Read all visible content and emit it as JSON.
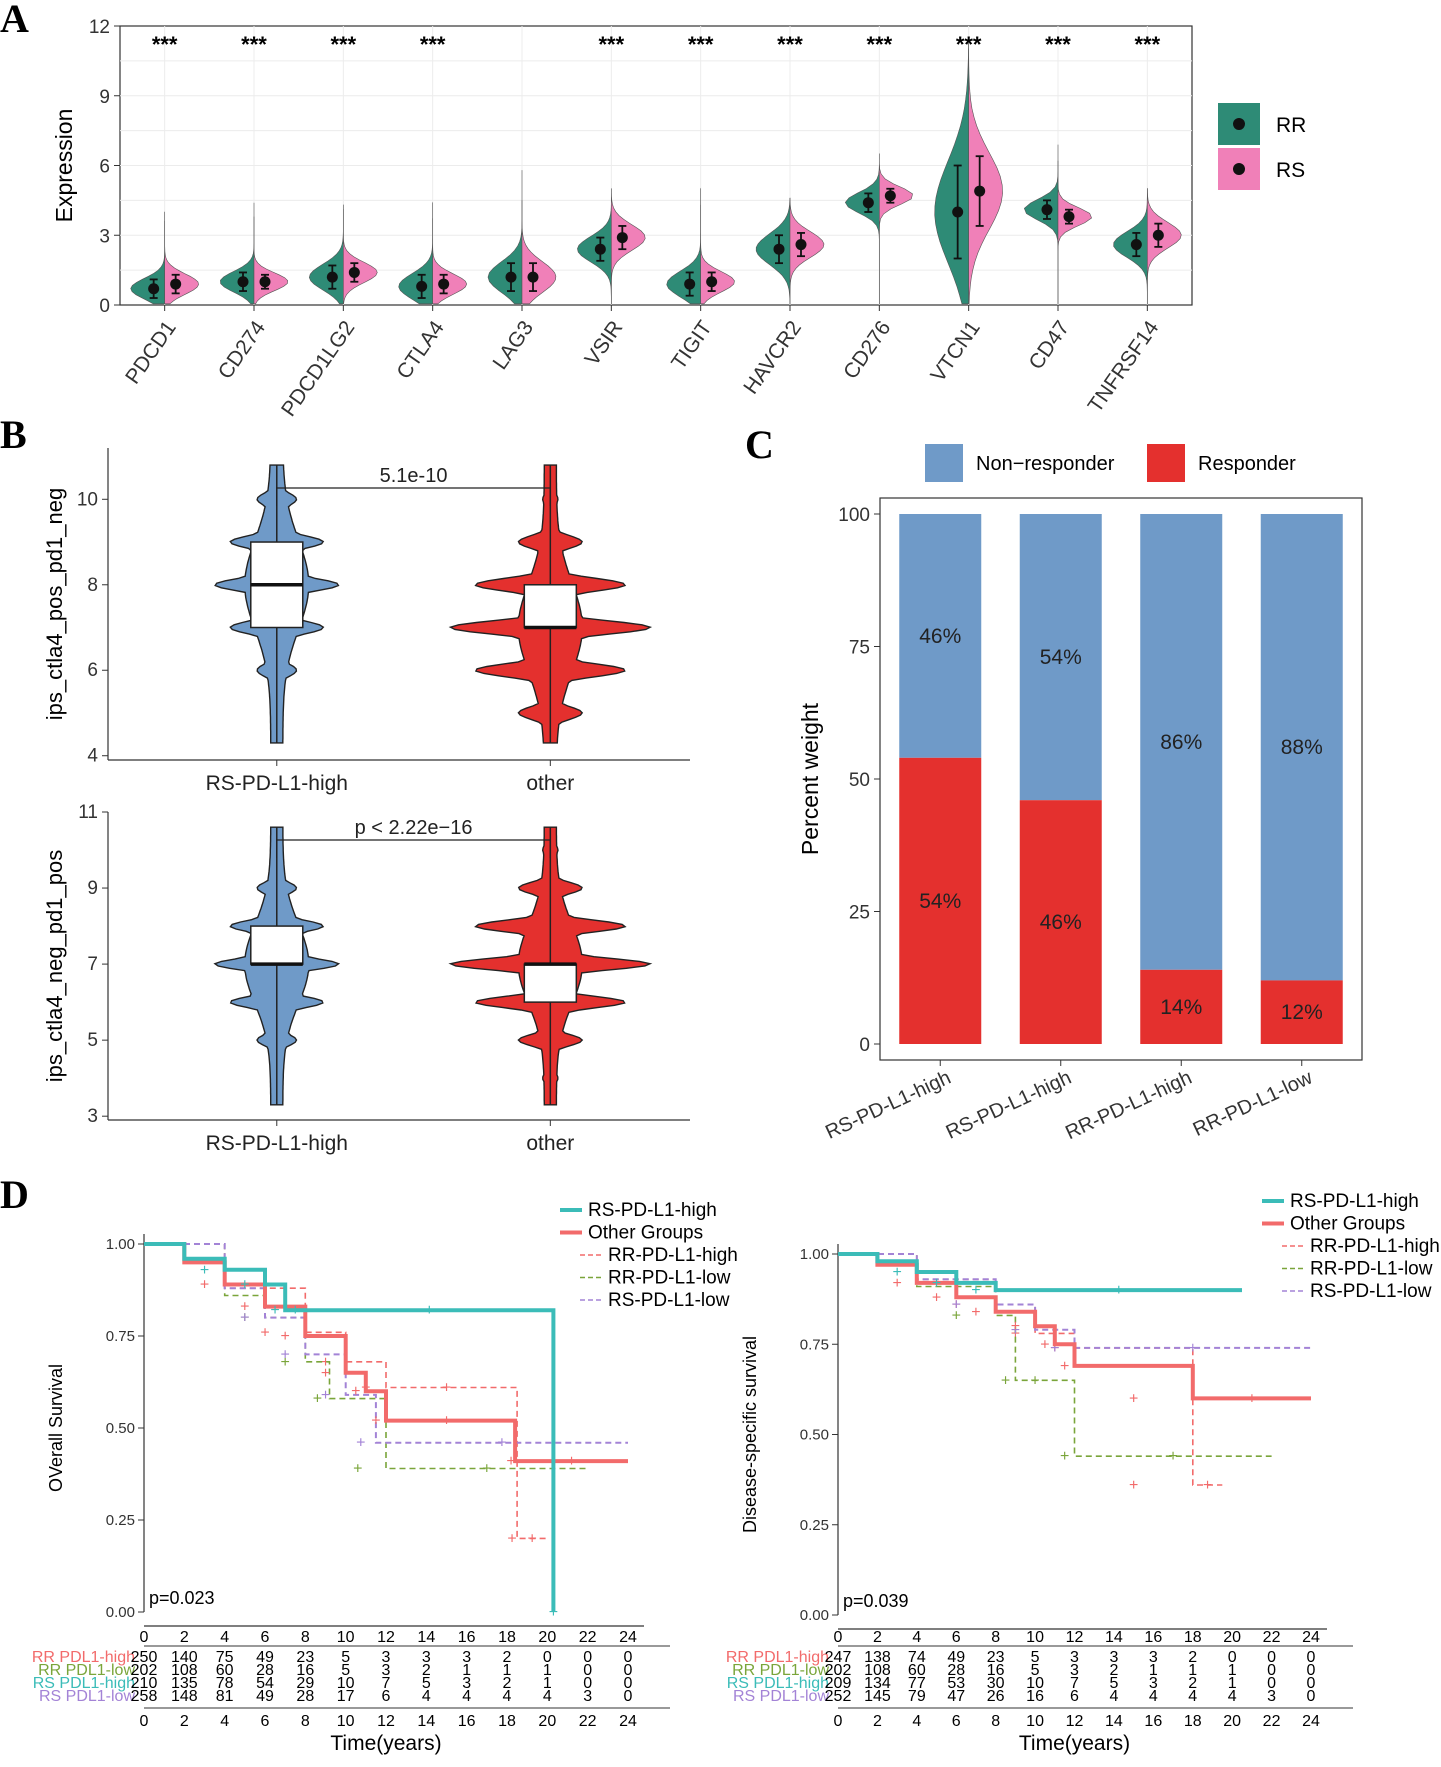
{
  "panels": {
    "a": "A",
    "b": "B",
    "c": "C",
    "d": "D"
  },
  "colors": {
    "rr_teal": "#2e8b76",
    "rs_pink": "#f080b8",
    "blue": "#6f9ac8",
    "red": "#e4302e",
    "km_teal": "#3bbcb8",
    "km_salmon": "#f26b6b",
    "km_green": "#7aa53a",
    "km_purple": "#a383d6"
  },
  "chart_data": [
    {
      "id": "A",
      "type": "split-violin",
      "ylabel": "Expression",
      "ylim": [
        0,
        12
      ],
      "yticks": [
        "0",
        "3",
        "6",
        "9",
        "12"
      ],
      "genes": [
        "PDCD1",
        "CD274",
        "PDCD1LG2",
        "CTLA4",
        "LAG3",
        "VSIR",
        "TIGIT",
        "HAVCR2",
        "CD276",
        "VTCN1",
        "CD47",
        "TNFRSF14"
      ],
      "significance": [
        "***",
        "***",
        "***",
        "***",
        "",
        "***",
        "***",
        "***",
        "***",
        "***",
        "***",
        "***"
      ],
      "legend": [
        "RR",
        "RS"
      ],
      "series": [
        {
          "name": "RR",
          "mean": [
            0.7,
            1.0,
            1.2,
            0.8,
            1.2,
            2.4,
            0.9,
            2.4,
            4.4,
            4.0,
            4.1,
            2.6
          ],
          "sd": [
            0.4,
            0.4,
            0.5,
            0.5,
            0.6,
            0.5,
            0.5,
            0.6,
            0.4,
            2.0,
            0.4,
            0.5
          ],
          "max": [
            4.0,
            4.4,
            4.3,
            4.4,
            5.8,
            4.5,
            5.0,
            4.6,
            6.0,
            11.5,
            6.9,
            5.0
          ]
        },
        {
          "name": "RS",
          "mean": [
            0.9,
            1.0,
            1.4,
            0.9,
            1.2,
            2.9,
            1.0,
            2.6,
            4.7,
            4.9,
            3.8,
            3.0
          ],
          "sd": [
            0.4,
            0.3,
            0.4,
            0.4,
            0.6,
            0.5,
            0.4,
            0.5,
            0.3,
            1.5,
            0.3,
            0.5
          ],
          "max": [
            3.6,
            3.8,
            4.1,
            3.7,
            4.5,
            5.0,
            4.3,
            4.6,
            6.5,
            11.0,
            6.2,
            5.0
          ]
        }
      ]
    },
    {
      "id": "B1",
      "type": "violin-box",
      "ylabel": "ips_ctla4_pos_pd1_neg",
      "ylim": [
        3.9,
        11.2
      ],
      "yticks": [
        4,
        6,
        8,
        10
      ],
      "categories": [
        "RS-PD-L1-high",
        "other"
      ],
      "pvalue": "5.1e-10",
      "box": [
        {
          "q1": 7,
          "median": 8,
          "q3": 9
        },
        {
          "q1": 7,
          "median": 7,
          "q3": 8
        }
      ]
    },
    {
      "id": "B2",
      "type": "violin-box",
      "ylabel": "ips_ctla4_neg_pd1_pos",
      "ylim": [
        2.9,
        11
      ],
      "yticks": [
        3,
        5,
        7,
        9,
        11
      ],
      "categories": [
        "RS-PD-L1-high",
        "other"
      ],
      "pvalue": "p < 2.22e−16",
      "box": [
        {
          "q1": 7,
          "median": 7,
          "q3": 8
        },
        {
          "q1": 6,
          "median": 7,
          "q3": 7
        }
      ]
    },
    {
      "id": "C",
      "type": "stacked-bar",
      "ylabel": "Percent weight",
      "ylim": [
        0,
        100
      ],
      "yticks": [
        "0",
        "25",
        "50",
        "75",
        "100"
      ],
      "categories": [
        "RS-PD-L1-high",
        "RS-PD-L1-high",
        "RR-PD-L1-high",
        "RR-PD-L1-low"
      ],
      "legend": [
        "Non−responder",
        "Responder"
      ],
      "series": [
        {
          "name": "Responder",
          "values": [
            54,
            46,
            14,
            12
          ],
          "labels": [
            "54%",
            "46%",
            "14%",
            "12%"
          ]
        },
        {
          "name": "Non−responder",
          "values": [
            46,
            54,
            86,
            88
          ],
          "labels": [
            "46%",
            "54%",
            "86%",
            "88%"
          ]
        }
      ]
    },
    {
      "id": "D1",
      "type": "line",
      "ylabel": "OVerall Survival",
      "xlabel": "Time(years)",
      "ylim": [
        0,
        1
      ],
      "xlim": [
        0,
        24
      ],
      "yticks": [
        "0.00",
        "0.25",
        "0.50",
        "0.75",
        "1.00"
      ],
      "xticks": [
        "0",
        "2",
        "4",
        "6",
        "8",
        "10",
        "12",
        "14",
        "16",
        "18",
        "20",
        "22",
        "24"
      ],
      "pvalue": "p=0.023",
      "legend": [
        "RS-PD-L1-high",
        "Other Groups",
        "RR-PD-L1-high",
        "RR-PD-L1-low",
        "RS-PD-L1-low"
      ],
      "series": [
        {
          "name": "RS-PD-L1-high",
          "x": [
            0,
            2,
            4,
            6,
            7,
            8,
            20.3,
            20.3
          ],
          "y": [
            1.0,
            0.96,
            0.93,
            0.89,
            0.82,
            0.82,
            0.82,
            0.0
          ]
        },
        {
          "name": "Other Groups",
          "x": [
            0,
            2,
            4,
            6,
            8,
            10,
            11,
            12,
            18,
            18.4,
            24
          ],
          "y": [
            1.0,
            0.95,
            0.89,
            0.83,
            0.75,
            0.65,
            0.6,
            0.52,
            0.52,
            0.41,
            0.41
          ]
        },
        {
          "name": "RR-PD-L1-high",
          "x": [
            0,
            4,
            8,
            10,
            12,
            18,
            18.5,
            20
          ],
          "y": [
            1.0,
            0.88,
            0.76,
            0.68,
            0.61,
            0.61,
            0.2,
            0.2
          ]
        },
        {
          "name": "RR-PD-L1-low",
          "x": [
            0,
            4,
            6,
            8,
            9.2,
            12,
            22
          ],
          "y": [
            1.0,
            0.86,
            0.8,
            0.68,
            0.58,
            0.39,
            0.39
          ]
        },
        {
          "name": "RS-PD-L1-low",
          "x": [
            0,
            4,
            6,
            8,
            10,
            11.5,
            24
          ],
          "y": [
            1.0,
            0.88,
            0.8,
            0.7,
            0.59,
            0.46,
            0.46
          ]
        }
      ],
      "risk_table": {
        "rows": [
          "RR PDL1-high",
          "RR PDL1-low",
          "RS PDL1-high",
          "RS PDL1-low"
        ],
        "values": [
          [
            "250",
            "140",
            "75",
            "49",
            "23",
            "5",
            "3",
            "3",
            "3",
            "2",
            "0",
            "0",
            "0"
          ],
          [
            "202",
            "108",
            "60",
            "28",
            "16",
            "5",
            "3",
            "2",
            "1",
            "1",
            "1",
            "0",
            "0"
          ],
          [
            "210",
            "135",
            "78",
            "54",
            "29",
            "10",
            "7",
            "5",
            "3",
            "2",
            "1",
            "0",
            "0"
          ],
          [
            "258",
            "148",
            "81",
            "49",
            "28",
            "17",
            "6",
            "4",
            "4",
            "4",
            "4",
            "3",
            "0"
          ]
        ]
      }
    },
    {
      "id": "D2",
      "type": "line",
      "ylabel": "Disease-specific survival",
      "xlabel": "Time(years)",
      "ylim": [
        0,
        1
      ],
      "xlim": [
        0,
        24
      ],
      "yticks": [
        "0.00",
        "0.25",
        "0.50",
        "0.75",
        "1.00"
      ],
      "xticks": [
        "0",
        "2",
        "4",
        "6",
        "8",
        "10",
        "12",
        "14",
        "16",
        "18",
        "20",
        "22",
        "24"
      ],
      "pvalue": "p=0.039",
      "legend": [
        "RS-PD-L1-high",
        "Other Groups",
        "RR-PD-L1-high",
        "RR-PD-L1-low",
        "RS-PD-L1-low"
      ],
      "series": [
        {
          "name": "RS-PD-L1-high",
          "x": [
            0,
            2,
            4,
            6,
            8,
            20.5
          ],
          "y": [
            1.0,
            0.98,
            0.95,
            0.92,
            0.9,
            0.9
          ]
        },
        {
          "name": "Other Groups",
          "x": [
            0,
            2,
            4,
            6,
            8,
            10,
            11,
            12,
            18,
            24
          ],
          "y": [
            1.0,
            0.97,
            0.92,
            0.88,
            0.84,
            0.8,
            0.75,
            0.69,
            0.6,
            0.6
          ]
        },
        {
          "name": "RR-PD-L1-high",
          "x": [
            0,
            4,
            8,
            10,
            12,
            18,
            19.5
          ],
          "y": [
            1.0,
            0.93,
            0.86,
            0.78,
            0.74,
            0.36,
            0.36
          ]
        },
        {
          "name": "RR-PD-L1-low",
          "x": [
            0,
            4,
            8,
            9,
            11,
            12,
            22
          ],
          "y": [
            1.0,
            0.91,
            0.83,
            0.65,
            0.65,
            0.44,
            0.44
          ]
        },
        {
          "name": "RS-PD-L1-low",
          "x": [
            0,
            4,
            8,
            10,
            12,
            24
          ],
          "y": [
            1.0,
            0.93,
            0.86,
            0.79,
            0.74,
            0.74
          ]
        }
      ],
      "risk_table": {
        "rows": [
          "RR PDL1-high",
          "RR PDL1-low",
          "RS PDL1-high",
          "RS PDL1-low"
        ],
        "values": [
          [
            "247",
            "138",
            "74",
            "49",
            "23",
            "5",
            "3",
            "3",
            "3",
            "2",
            "0",
            "0",
            "0"
          ],
          [
            "202",
            "108",
            "60",
            "28",
            "16",
            "5",
            "3",
            "2",
            "1",
            "1",
            "1",
            "0",
            "0"
          ],
          [
            "209",
            "134",
            "77",
            "53",
            "30",
            "10",
            "7",
            "5",
            "3",
            "2",
            "1",
            "0",
            "0"
          ],
          [
            "252",
            "145",
            "79",
            "47",
            "26",
            "16",
            "6",
            "4",
            "4",
            "4",
            "4",
            "3",
            "0"
          ]
        ]
      }
    }
  ]
}
